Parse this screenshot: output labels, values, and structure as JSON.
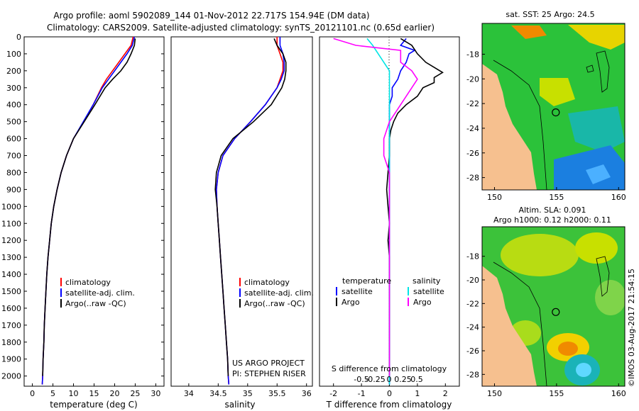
{
  "header": {
    "line1": "Argo profile: aoml 5902089_144 01-Nov-2012 22.717S 154.94E (DM data)",
    "line2": "Climatology: CARS2009. Satellite-adjusted climatology: synTS_20121101.nc (0.65d earlier)"
  },
  "colors": {
    "climatology": "#ff0000",
    "satellite": "#0000ff",
    "argo": "#000000",
    "sat_s": "#00e5e5",
    "argo_s": "#ff00ff"
  },
  "chart_data": [
    {
      "type": "line",
      "name": "temperature",
      "xlabel": "temperature (deg C)",
      "xlim": [
        -2,
        32
      ],
      "xticks": [
        0,
        5,
        10,
        15,
        20,
        25,
        30
      ],
      "ylim": [
        2060,
        0
      ],
      "yticks": [
        0,
        100,
        200,
        300,
        400,
        500,
        600,
        700,
        800,
        900,
        1000,
        1100,
        1200,
        1300,
        1400,
        1500,
        1600,
        1700,
        1800,
        1900,
        2000
      ],
      "legend": [
        "climatology",
        "satellite-adj. clim.",
        "Argo(..raw -QC)"
      ],
      "series": [
        {
          "name": "climatology",
          "color": "#ff0000",
          "points": [
            [
              24.5,
              0
            ],
            [
              24,
              50
            ],
            [
              22.5,
              100
            ],
            [
              21,
              150
            ],
            [
              19.5,
              200
            ],
            [
              18,
              250
            ],
            [
              16.8,
              300
            ],
            [
              14.8,
              400
            ],
            [
              12.5,
              500
            ],
            [
              10,
              600
            ],
            [
              8.3,
              700
            ],
            [
              7,
              800
            ],
            [
              6,
              900
            ],
            [
              5.2,
              1000
            ],
            [
              4.6,
              1100
            ],
            [
              4.2,
              1200
            ],
            [
              3.8,
              1300
            ],
            [
              3.5,
              1400
            ],
            [
              3.3,
              1500
            ],
            [
              3.1,
              1600
            ],
            [
              2.9,
              1700
            ],
            [
              2.8,
              1800
            ],
            [
              2.6,
              1900
            ],
            [
              2.5,
              2000
            ],
            [
              2.4,
              2050
            ]
          ]
        },
        {
          "name": "satellite-adj. clim.",
          "color": "#0000ff",
          "points": [
            [
              24.8,
              0
            ],
            [
              24.3,
              50
            ],
            [
              23,
              100
            ],
            [
              21.5,
              150
            ],
            [
              20,
              200
            ],
            [
              18.5,
              250
            ],
            [
              17,
              300
            ],
            [
              14.8,
              400
            ],
            [
              12.4,
              500
            ],
            [
              10,
              600
            ],
            [
              8.3,
              700
            ],
            [
              7,
              800
            ],
            [
              6,
              900
            ],
            [
              5.2,
              1000
            ],
            [
              4.6,
              1100
            ],
            [
              4.2,
              1200
            ],
            [
              3.8,
              1300
            ],
            [
              3.5,
              1400
            ],
            [
              3.3,
              1500
            ],
            [
              3.1,
              1600
            ],
            [
              2.9,
              1700
            ],
            [
              2.8,
              1800
            ],
            [
              2.6,
              1900
            ],
            [
              2.5,
              2000
            ],
            [
              2.4,
              2050
            ]
          ]
        },
        {
          "name": "Argo(..raw -QC)",
          "color": "#000000",
          "points": [
            [
              25,
              10
            ],
            [
              24.8,
              50
            ],
            [
              24,
              100
            ],
            [
              23,
              150
            ],
            [
              21.5,
              200
            ],
            [
              19.5,
              250
            ],
            [
              17.7,
              300
            ],
            [
              15.2,
              400
            ],
            [
              12.6,
              500
            ],
            [
              10,
              600
            ],
            [
              8.3,
              700
            ],
            [
              7,
              800
            ],
            [
              6,
              900
            ],
            [
              5.2,
              1000
            ],
            [
              4.6,
              1100
            ],
            [
              4.2,
              1200
            ],
            [
              3.8,
              1300
            ],
            [
              3.5,
              1400
            ],
            [
              3.3,
              1500
            ],
            [
              3.1,
              1600
            ],
            [
              2.9,
              1700
            ],
            [
              2.8,
              1800
            ],
            [
              2.6,
              1900
            ],
            [
              2.5,
              2000
            ]
          ]
        }
      ]
    },
    {
      "type": "line",
      "name": "salinity",
      "xlabel": "salinity",
      "xlim": [
        33.7,
        36.1
      ],
      "xticks": [
        34,
        34.5,
        35,
        35.5,
        36
      ],
      "xticklabels": [
        "34",
        "34.5",
        "35",
        "35.5",
        "36"
      ],
      "ylim": [
        2060,
        0
      ],
      "legend": [
        "climatology",
        "satellite-adj. clim.",
        "Argo(..raw -QC)"
      ],
      "annotation": [
        "US ARGO PROJECT",
        "PI: STEPHEN RISER"
      ],
      "series": [
        {
          "name": "climatology",
          "color": "#ff0000",
          "points": [
            [
              35.5,
              0
            ],
            [
              35.5,
              50
            ],
            [
              35.55,
              100
            ],
            [
              35.6,
              150
            ],
            [
              35.6,
              200
            ],
            [
              35.55,
              250
            ],
            [
              35.5,
              300
            ],
            [
              35.3,
              400
            ],
            [
              35.05,
              500
            ],
            [
              34.78,
              600
            ],
            [
              34.58,
              700
            ],
            [
              34.5,
              800
            ],
            [
              34.47,
              900
            ],
            [
              34.48,
              1000
            ],
            [
              34.5,
              1100
            ],
            [
              34.52,
              1200
            ],
            [
              34.54,
              1300
            ],
            [
              34.56,
              1400
            ],
            [
              34.58,
              1500
            ],
            [
              34.6,
              1600
            ],
            [
              34.62,
              1700
            ],
            [
              34.64,
              1800
            ],
            [
              34.66,
              1900
            ],
            [
              34.67,
              2000
            ],
            [
              34.68,
              2050
            ]
          ]
        },
        {
          "name": "satellite-adj. clim.",
          "color": "#0000ff",
          "points": [
            [
              35.55,
              0
            ],
            [
              35.55,
              50
            ],
            [
              35.6,
              100
            ],
            [
              35.62,
              150
            ],
            [
              35.62,
              200
            ],
            [
              35.57,
              250
            ],
            [
              35.5,
              300
            ],
            [
              35.3,
              400
            ],
            [
              35.05,
              500
            ],
            [
              34.78,
              600
            ],
            [
              34.58,
              700
            ],
            [
              34.5,
              800
            ],
            [
              34.47,
              900
            ],
            [
              34.48,
              1000
            ],
            [
              34.5,
              1100
            ],
            [
              34.52,
              1200
            ],
            [
              34.54,
              1300
            ],
            [
              34.56,
              1400
            ],
            [
              34.58,
              1500
            ],
            [
              34.6,
              1600
            ],
            [
              34.62,
              1700
            ],
            [
              34.64,
              1800
            ],
            [
              34.66,
              1900
            ],
            [
              34.67,
              2000
            ],
            [
              34.68,
              2050
            ]
          ]
        },
        {
          "name": "Argo(..raw -QC)",
          "color": "#000000",
          "points": [
            [
              35.45,
              10
            ],
            [
              35.5,
              50
            ],
            [
              35.6,
              100
            ],
            [
              35.65,
              150
            ],
            [
              35.65,
              200
            ],
            [
              35.63,
              250
            ],
            [
              35.58,
              300
            ],
            [
              35.4,
              400
            ],
            [
              35.1,
              500
            ],
            [
              34.75,
              600
            ],
            [
              34.55,
              700
            ],
            [
              34.47,
              800
            ],
            [
              34.45,
              900
            ],
            [
              34.48,
              1000
            ],
            [
              34.5,
              1100
            ],
            [
              34.52,
              1200
            ],
            [
              34.54,
              1300
            ],
            [
              34.56,
              1400
            ],
            [
              34.58,
              1500
            ],
            [
              34.6,
              1600
            ],
            [
              34.62,
              1700
            ],
            [
              34.64,
              1800
            ],
            [
              34.66,
              1900
            ],
            [
              34.67,
              2000
            ]
          ]
        }
      ]
    },
    {
      "type": "line",
      "name": "difference",
      "xlabel_bottom": "T difference from climatology",
      "xlabel_top": "S difference from climatology",
      "xlim": [
        -2.5,
        2.5
      ],
      "xticks": [
        -2,
        -1,
        0,
        1,
        2
      ],
      "sticks": [
        -0.5,
        -0.25,
        0,
        0.25,
        0.5
      ],
      "sticklabels": [
        "-0.5",
        "-0.25",
        "0",
        "0.25",
        "0.5"
      ],
      "ylim": [
        2060,
        0
      ],
      "legend_temperature": [
        "temperature",
        "satellite",
        "Argo"
      ],
      "legend_salinity": [
        "salinity",
        "satellite",
        "Argo"
      ],
      "series": [
        {
          "name": "T satellite",
          "color": "#0000ff",
          "points": [
            [
              0.6,
              10
            ],
            [
              0.4,
              50
            ],
            [
              0.9,
              80
            ],
            [
              0.7,
              100
            ],
            [
              0.6,
              150
            ],
            [
              0.4,
              200
            ],
            [
              0.3,
              250
            ],
            [
              0.1,
              300
            ],
            [
              0.1,
              350
            ],
            [
              0,
              400
            ],
            [
              0,
              500
            ],
            [
              0,
              700
            ],
            [
              0,
              900
            ],
            [
              0,
              1200
            ],
            [
              0,
              1600
            ],
            [
              0,
              2000
            ],
            [
              0,
              2050
            ]
          ]
        },
        {
          "name": "T Argo",
          "color": "#000000",
          "points": [
            [
              0.4,
              10
            ],
            [
              0.8,
              50
            ],
            [
              1.0,
              100
            ],
            [
              1.3,
              150
            ],
            [
              1.6,
              180
            ],
            [
              1.9,
              210
            ],
            [
              1.6,
              240
            ],
            [
              1.6,
              270
            ],
            [
              1.2,
              300
            ],
            [
              1.0,
              350
            ],
            [
              0.6,
              400
            ],
            [
              0.3,
              450
            ],
            [
              0.15,
              500
            ],
            [
              0.05,
              550
            ],
            [
              0,
              600
            ],
            [
              0,
              700
            ],
            [
              -0.05,
              800
            ],
            [
              -0.1,
              900
            ],
            [
              -0.05,
              1000
            ],
            [
              0,
              1100
            ],
            [
              -0.05,
              1200
            ],
            [
              0,
              1300
            ],
            [
              0,
              1400
            ],
            [
              0,
              1500
            ],
            [
              0,
              1600
            ],
            [
              0,
              1700
            ],
            [
              0,
              1800
            ],
            [
              0,
              1900
            ],
            [
              0,
              2000
            ]
          ]
        },
        {
          "name": "S satellite",
          "color": "#00e5e5",
          "points": [
            [
              -0.2,
              10
            ],
            [
              -0.15,
              50
            ],
            [
              -0.1,
              100
            ],
            [
              -0.05,
              150
            ],
            [
              0,
              200
            ],
            [
              0,
              300
            ],
            [
              0,
              500
            ],
            [
              0,
              800
            ],
            [
              0,
              1100
            ],
            [
              0,
              1400
            ],
            [
              0,
              1700
            ],
            [
              0,
              2000
            ],
            [
              0,
              2050
            ]
          ]
        },
        {
          "name": "S Argo",
          "color": "#ff00ff",
          "points": [
            [
              -0.5,
              10
            ],
            [
              -0.3,
              50
            ],
            [
              0.1,
              80
            ],
            [
              0.1,
              100
            ],
            [
              0.1,
              150
            ],
            [
              0.2,
              200
            ],
            [
              0.25,
              250
            ],
            [
              0.2,
              300
            ],
            [
              0.1,
              400
            ],
            [
              0,
              500
            ],
            [
              -0.05,
              600
            ],
            [
              -0.05,
              700
            ],
            [
              0,
              800
            ],
            [
              0,
              1000
            ],
            [
              0,
              1300
            ],
            [
              0,
              1600
            ],
            [
              0,
              2000
            ]
          ]
        }
      ]
    },
    {
      "type": "heatmap",
      "name": "sst-map",
      "title": "sat. SST: 25 Argo: 24.5",
      "xlim": [
        149,
        160.5
      ],
      "ylim": [
        -29,
        -15.5
      ],
      "xticks": [
        150,
        155,
        160
      ],
      "yticks": [
        -18,
        -20,
        -22,
        -24,
        -26,
        -28
      ],
      "argo_position": [
        154.94,
        -22.717
      ]
    },
    {
      "type": "heatmap",
      "name": "sla-map",
      "title": [
        "Altim. SLA: 0.091",
        "Argo h1000: 0.12 h2000: 0.11"
      ],
      "xlim": [
        149,
        160.5
      ],
      "ylim": [
        -29,
        -15.5
      ],
      "xticks": [
        150,
        155,
        160
      ],
      "yticks": [
        -18,
        -20,
        -22,
        -24,
        -26,
        -28
      ],
      "argo_position": [
        154.94,
        -22.717
      ]
    }
  ],
  "footer": {
    "stamp": "©IMOS 03-Aug-2017 21:54:15"
  }
}
